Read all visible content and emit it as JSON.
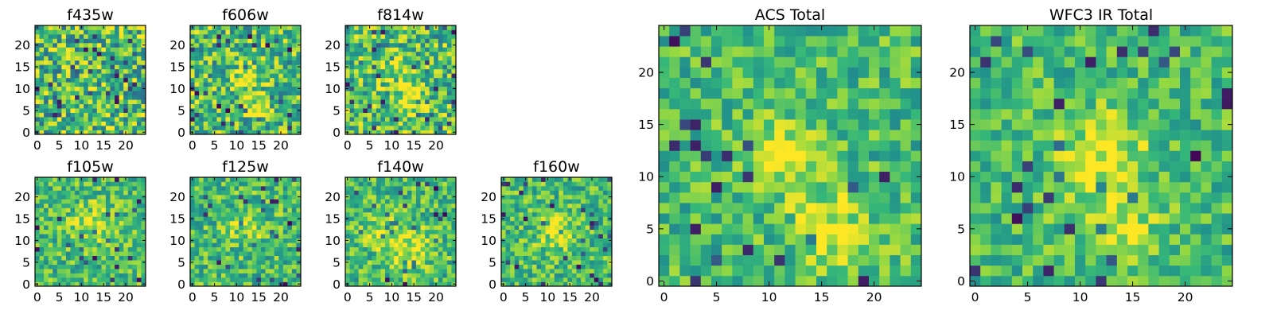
{
  "chart_data": [
    {
      "type": "heatmap",
      "title": "f435w",
      "grid_size": 25,
      "colormap": "viridis",
      "xticks": [
        "0",
        "5",
        "10",
        "15",
        "20"
      ],
      "yticks": [
        "0",
        "5",
        "10",
        "15",
        "20"
      ],
      "xlim": [
        -0.5,
        24.5
      ],
      "ylim": [
        -0.5,
        24.5
      ],
      "grid": false
    },
    {
      "type": "heatmap",
      "title": "f606w",
      "grid_size": 25,
      "colormap": "viridis",
      "xticks": [
        "0",
        "5",
        "10",
        "15",
        "20"
      ],
      "yticks": [
        "0",
        "5",
        "10",
        "15",
        "20"
      ],
      "xlim": [
        -0.5,
        24.5
      ],
      "ylim": [
        -0.5,
        24.5
      ],
      "grid": false
    },
    {
      "type": "heatmap",
      "title": "f814w",
      "grid_size": 25,
      "colormap": "viridis",
      "xticks": [
        "0",
        "5",
        "10",
        "15",
        "20"
      ],
      "yticks": [
        "0",
        "5",
        "10",
        "15",
        "20"
      ],
      "xlim": [
        -0.5,
        24.5
      ],
      "ylim": [
        -0.5,
        24.5
      ],
      "grid": false
    },
    {
      "type": "heatmap",
      "title": "f105w",
      "grid_size": 25,
      "colormap": "viridis",
      "xticks": [
        "0",
        "5",
        "10",
        "15",
        "20"
      ],
      "yticks": [
        "0",
        "5",
        "10",
        "15",
        "20"
      ],
      "xlim": [
        -0.5,
        24.5
      ],
      "ylim": [
        -0.5,
        24.5
      ],
      "grid": false
    },
    {
      "type": "heatmap",
      "title": "f125w",
      "grid_size": 25,
      "colormap": "viridis",
      "xticks": [
        "0",
        "5",
        "10",
        "15",
        "20"
      ],
      "yticks": [
        "0",
        "5",
        "10",
        "15",
        "20"
      ],
      "xlim": [
        -0.5,
        24.5
      ],
      "ylim": [
        -0.5,
        24.5
      ],
      "grid": false
    },
    {
      "type": "heatmap",
      "title": "f140w",
      "grid_size": 25,
      "colormap": "viridis",
      "xticks": [
        "0",
        "5",
        "10",
        "15",
        "20"
      ],
      "yticks": [
        "0",
        "5",
        "10",
        "15",
        "20"
      ],
      "xlim": [
        -0.5,
        24.5
      ],
      "ylim": [
        -0.5,
        24.5
      ],
      "grid": false
    },
    {
      "type": "heatmap",
      "title": "f160w",
      "grid_size": 25,
      "colormap": "viridis",
      "xticks": [
        "0",
        "5",
        "10",
        "15",
        "20"
      ],
      "yticks": [
        "0",
        "5",
        "10",
        "15",
        "20"
      ],
      "xlim": [
        -0.5,
        24.5
      ],
      "ylim": [
        -0.5,
        24.5
      ],
      "grid": false
    },
    {
      "type": "heatmap",
      "title": "ACS Total",
      "grid_size": 25,
      "colormap": "viridis",
      "xticks": [
        "0",
        "5",
        "10",
        "15",
        "20"
      ],
      "yticks": [
        "0",
        "5",
        "10",
        "15",
        "20"
      ],
      "xlim": [
        -0.5,
        24.5
      ],
      "ylim": [
        -0.5,
        24.5
      ],
      "grid": false
    },
    {
      "type": "heatmap",
      "title": "WFC3 IR Total",
      "grid_size": 25,
      "colormap": "viridis",
      "xticks": [
        "0",
        "5",
        "10",
        "15",
        "20"
      ],
      "yticks": [
        "0",
        "5",
        "10",
        "15",
        "20"
      ],
      "xlim": [
        -0.5,
        24.5
      ],
      "ylim": [
        -0.5,
        24.5
      ],
      "grid": false
    }
  ],
  "colors": {
    "viridis": [
      "#440154",
      "#31688e",
      "#21918c",
      "#35b779",
      "#90d743",
      "#fde725"
    ]
  }
}
